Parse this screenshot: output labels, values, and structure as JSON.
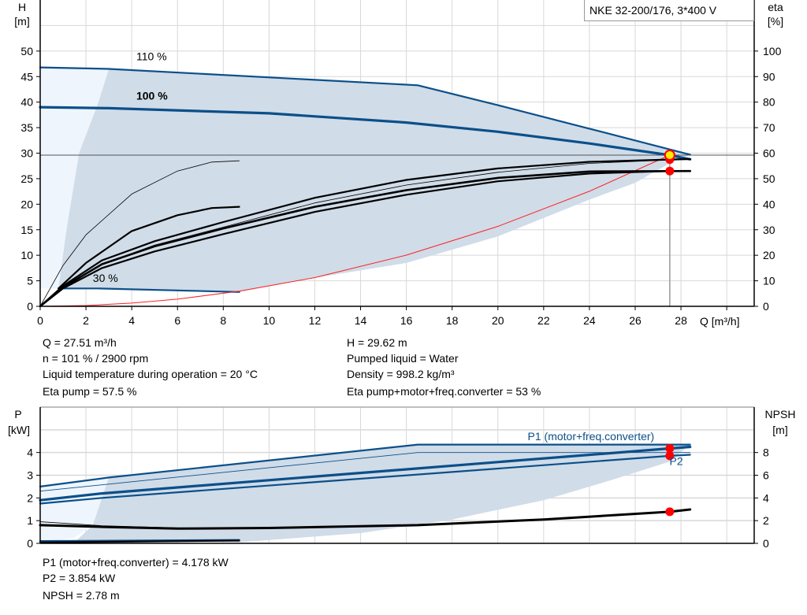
{
  "chart_data": [
    {
      "type": "line",
      "legend_title": "NKE 32-200/176, 3*400 V",
      "xlabel": "Q [m³/h]",
      "ylabel_left": [
        "H",
        "[m]"
      ],
      "ylabel_right": [
        "eta",
        "[%]"
      ],
      "xlim": [
        0,
        31.2
      ],
      "ylim_left": [
        0,
        60
      ],
      "ylim_right": [
        0,
        120
      ],
      "x_ticks": [
        0,
        2,
        4,
        6,
        8,
        10,
        12,
        14,
        16,
        18,
        20,
        22,
        24,
        26,
        28
      ],
      "y_ticks_left": [
        0,
        5,
        10,
        15,
        20,
        25,
        30,
        35,
        40,
        45,
        50
      ],
      "y_ticks_right": [
        0,
        10,
        20,
        30,
        40,
        50,
        60,
        70,
        80,
        90,
        100
      ],
      "grid": true,
      "curve_labels": [
        {
          "text": "110 %",
          "q": 4.2,
          "h": 48.2,
          "bold": false
        },
        {
          "text": "100 %",
          "q": 4.2,
          "h": 40.5,
          "bold": true
        },
        {
          "text": "30 %",
          "q": 2.3,
          "h": 4.8,
          "bold": false
        }
      ],
      "envelope": {
        "outer": [
          [
            0,
            3.5
          ],
          [
            0,
            46.8
          ],
          [
            3,
            46.5
          ],
          [
            3,
            46.5
          ],
          [
            0.8,
            3.5
          ]
        ],
        "inner": [
          [
            3,
            46.5
          ],
          [
            16.5,
            43.3
          ],
          [
            20,
            39.4
          ],
          [
            24,
            34.8
          ],
          [
            28.4,
            29.7
          ],
          [
            27.5,
            28
          ],
          [
            26,
            24.2
          ],
          [
            24,
            20.9
          ],
          [
            20,
            13.7
          ],
          [
            16,
            8.5
          ],
          [
            12,
            5.6
          ],
          [
            8.7,
            2.8
          ],
          [
            2.5,
            3.5
          ],
          [
            0.8,
            3.5
          ],
          [
            1.15,
            15
          ],
          [
            1.7,
            30
          ],
          [
            2.55,
            40
          ],
          [
            3,
            46.5
          ]
        ]
      },
      "series": [
        {
          "axis": "H",
          "kind": "head-110",
          "color": "#0b4f8a",
          "width": 2.2,
          "points": [
            [
              0,
              46.8
            ],
            [
              3,
              46.5
            ],
            [
              16.5,
              43.3
            ],
            [
              20,
              39.4
            ],
            [
              24,
              34.8
            ],
            [
              28.4,
              29.7
            ]
          ]
        },
        {
          "axis": "H",
          "kind": "head-100",
          "color": "#0b4f8a",
          "width": 3.2,
          "points": [
            [
              0,
              39
            ],
            [
              3,
              38.8
            ],
            [
              10,
              37.8
            ],
            [
              16,
              36
            ],
            [
              20,
              34.2
            ],
            [
              24,
              31.9
            ],
            [
              27.5,
              29.62
            ],
            [
              28.4,
              28.8
            ]
          ]
        },
        {
          "axis": "H",
          "kind": "head-30",
          "color": "#0b4f8a",
          "width": 2.2,
          "points": [
            [
              0.8,
              3.5
            ],
            [
              2.5,
              3.5
            ],
            [
              8.7,
              2.8
            ]
          ]
        },
        {
          "axis": "H",
          "kind": "system-curve",
          "color": "#ff2020",
          "width": 1,
          "points": [
            [
              0,
              0
            ],
            [
              2,
              0.16
            ],
            [
              4,
              0.63
            ],
            [
              6,
              1.41
            ],
            [
              8.7,
              2.96
            ],
            [
              12,
              5.63
            ],
            [
              16,
              10.02
            ],
            [
              20,
              15.65
            ],
            [
              24,
              22.54
            ],
            [
              27.51,
              29.62
            ]
          ]
        },
        {
          "axis": "eta",
          "kind": "eta-pump-30",
          "color": "#000",
          "width": 0.8,
          "points": [
            [
              0,
              0
            ],
            [
              1,
              16
            ],
            [
              2,
              28
            ],
            [
              4,
              44
            ],
            [
              6,
              53
            ],
            [
              7.5,
              56.5
            ],
            [
              8.7,
              57
            ]
          ]
        },
        {
          "axis": "eta",
          "kind": "eta-total-30",
          "color": "#000",
          "width": 2.2,
          "points": [
            [
              0.8,
              7
            ],
            [
              2,
              17
            ],
            [
              4,
              29.5
            ],
            [
              6,
              35.7
            ],
            [
              7.5,
              38.5
            ],
            [
              8.7,
              39
            ]
          ]
        },
        {
          "axis": "eta",
          "kind": "eta-pump-110",
          "color": "#000",
          "width": 0.8,
          "points": [
            [
              0,
              0
            ],
            [
              1,
              7
            ],
            [
              2.7,
              16.5
            ],
            [
              5,
              24
            ],
            [
              8,
              31
            ],
            [
              12,
              40.5
            ],
            [
              16,
              47.5
            ],
            [
              20,
              52.5
            ],
            [
              24,
              56
            ],
            [
              28.4,
              57.7
            ]
          ]
        },
        {
          "axis": "eta",
          "kind": "eta-pump-100",
          "color": "#000",
          "width": 2.2,
          "points": [
            [
              0,
              0
            ],
            [
              1,
              8
            ],
            [
              2.7,
              18
            ],
            [
              5,
              25.5
            ],
            [
              8,
              33
            ],
            [
              12,
              42.5
            ],
            [
              16,
              49.5
            ],
            [
              20,
              54
            ],
            [
              24,
              56.6
            ],
            [
              27.5,
              57.5
            ],
            [
              28.4,
              57.7
            ]
          ]
        },
        {
          "axis": "eta",
          "kind": "eta-total-110",
          "color": "#000",
          "width": 2.6,
          "points": [
            [
              0,
              0
            ],
            [
              1,
              7.5
            ],
            [
              2.7,
              16.5
            ],
            [
              5,
              23.5
            ],
            [
              8,
              30.5
            ],
            [
              12,
              39
            ],
            [
              16,
              45.5
            ],
            [
              20,
              50.3
            ],
            [
              24,
              52.8
            ],
            [
              28.4,
              53
            ]
          ]
        },
        {
          "axis": "eta",
          "kind": "eta-total-100",
          "color": "#000",
          "width": 2.2,
          "points": [
            [
              0,
              0
            ],
            [
              1,
              7
            ],
            [
              2.7,
              15
            ],
            [
              5,
              21.5
            ],
            [
              8,
              28.3
            ],
            [
              12,
              37
            ],
            [
              16,
              43.7
            ],
            [
              20,
              49
            ],
            [
              24,
              52
            ],
            [
              27.5,
              53
            ],
            [
              28.4,
              53
            ]
          ]
        }
      ],
      "duty_point": {
        "q": 27.51,
        "h": 29.62,
        "eta_pump": 57.5,
        "eta_total": 53
      }
    },
    {
      "type": "line",
      "ylabel_left": [
        "P",
        "[kW]"
      ],
      "ylabel_right": [
        "NPSH",
        "[m]"
      ],
      "xlim": [
        0,
        31.2
      ],
      "ylim_left": [
        0,
        6
      ],
      "ylim_right": [
        0,
        12
      ],
      "y_ticks_left": [
        0,
        1,
        2,
        3,
        4
      ],
      "y_ticks_right": [
        0,
        2,
        4,
        6,
        8
      ],
      "grid": true,
      "curve_labels": [
        {
          "text": "P1 (motor+freq.converter)",
          "q": 21.3,
          "p": 4.55
        },
        {
          "text": "P2",
          "q": 27.5,
          "p": 3.45
        }
      ],
      "envelope": {
        "outer": [
          [
            0,
            0
          ],
          [
            0,
            2.55
          ],
          [
            3,
            2.9
          ],
          [
            3,
            2.9
          ],
          [
            2.3,
            0.8
          ],
          [
            1.5,
            0.25
          ]
        ],
        "inner": [
          [
            3,
            2.9
          ],
          [
            16.5,
            4.35
          ],
          [
            28.4,
            4.35
          ],
          [
            27.5,
            3.6
          ],
          [
            25,
            2.8
          ],
          [
            22,
            1.9
          ],
          [
            18,
            1.05
          ],
          [
            14,
            0.45
          ],
          [
            8.7,
            0.05
          ],
          [
            1.5,
            0.05
          ],
          [
            2.3,
            0.8
          ],
          [
            2.7,
            2.0
          ],
          [
            3,
            2.9
          ]
        ]
      },
      "series": [
        {
          "axis": "P",
          "kind": "p1-110",
          "color": "#0b4f8a",
          "width": 2.2,
          "points": [
            [
              0,
              2.5
            ],
            [
              3,
              2.9
            ],
            [
              16.5,
              4.35
            ],
            [
              28.4,
              4.35
            ]
          ]
        },
        {
          "axis": "P",
          "kind": "p2-110",
          "color": "#0b4f8a",
          "width": 0.9,
          "points": [
            [
              0,
              2.3
            ],
            [
              16.5,
              4.0
            ],
            [
              28.4,
              4.0
            ]
          ]
        },
        {
          "axis": "P",
          "kind": "p1-100",
          "color": "#0b4f8a",
          "width": 3.2,
          "points": [
            [
              0,
              1.9
            ],
            [
              2.7,
              2.2
            ],
            [
              27.51,
              4.178
            ],
            [
              28.4,
              4.25
            ]
          ]
        },
        {
          "axis": "P",
          "kind": "p2-100",
          "color": "#0b4f8a",
          "width": 2.2,
          "points": [
            [
              0,
              1.75
            ],
            [
              2.7,
              2.0
            ],
            [
              27.51,
              3.854
            ],
            [
              28.4,
              3.9
            ]
          ]
        },
        {
          "axis": "P",
          "kind": "p1-30",
          "color": "#0b4f8a",
          "width": 2.2,
          "points": [
            [
              0,
              0.1
            ],
            [
              8.7,
              0.15
            ]
          ]
        },
        {
          "axis": "P",
          "kind": "p2-30",
          "color": "#000",
          "width": 2.2,
          "points": [
            [
              0,
              0.04
            ],
            [
              8.7,
              0.12
            ]
          ]
        },
        {
          "axis": "NPSH",
          "kind": "npsh-110",
          "color": "#000",
          "width": 0.9,
          "points": [
            [
              0,
              1.9
            ],
            [
              2.7,
              1.55
            ],
            [
              6,
              1.35
            ],
            [
              10,
              1.38
            ]
          ]
        },
        {
          "axis": "NPSH",
          "kind": "npsh-100",
          "color": "#000",
          "width": 3,
          "points": [
            [
              0,
              1.6
            ],
            [
              2.7,
              1.45
            ],
            [
              6,
              1.3
            ],
            [
              10,
              1.35
            ],
            [
              16.5,
              1.6
            ],
            [
              22,
              2.1
            ],
            [
              27.51,
              2.78
            ],
            [
              28.4,
              2.98
            ]
          ]
        }
      ],
      "duty_point": {
        "q": 27.51,
        "p1": 4.178,
        "p2": 3.854,
        "npsh": 2.78
      }
    }
  ],
  "info": {
    "left": [
      "Q = 27.51 m³/h",
      "n = 101 % / 2900 rpm",
      "Liquid temperature during operation = 20 °C",
      "Eta pump = 57.5 %"
    ],
    "right": [
      "H = 29.62 m",
      "Pumped liquid = Water",
      "Density = 998.2 kg/m³",
      "Eta pump+motor+freq.converter = 53 %"
    ],
    "bottom": [
      "P1 (motor+freq.converter) = 4.178 kW",
      "P2 = 3.854 kW",
      "NPSH = 2.78 m"
    ]
  },
  "colors": {
    "curve_blue": "#0b4f8a",
    "envelope": "#d0dce8",
    "envelope_light": "#eef5fc",
    "duty_point": "#ff0000",
    "duty_highlight": "#ffee00",
    "grid": "#d8d8d8"
  }
}
